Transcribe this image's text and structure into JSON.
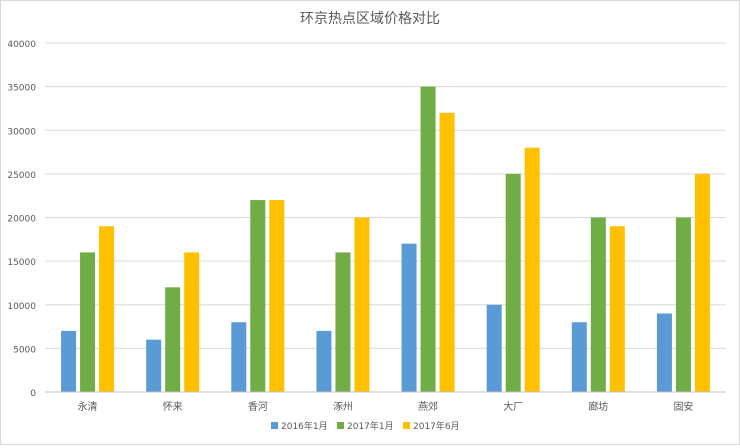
{
  "chart_data": {
    "type": "bar",
    "title": "环京热点区域价格对比",
    "xlabel": "",
    "ylabel": "",
    "categories": [
      "永清",
      "怀来",
      "香河",
      "涿州",
      "燕郊",
      "大厂",
      "廊坊",
      "固安"
    ],
    "series": [
      {
        "name": "2016年1月",
        "color": "#5b9bd5",
        "values": [
          7000,
          6000,
          8000,
          7000,
          17000,
          10000,
          8000,
          9000
        ]
      },
      {
        "name": "2017年1月",
        "color": "#70ad47",
        "values": [
          16000,
          12000,
          22000,
          16000,
          35000,
          25000,
          20000,
          20000
        ]
      },
      {
        "name": "2017年6月",
        "color": "#ffc000",
        "values": [
          19000,
          16000,
          22000,
          20000,
          32000,
          28000,
          19000,
          25000
        ]
      }
    ],
    "ylim": [
      0,
      40000
    ],
    "yticks": [
      "0",
      "5000",
      "10000",
      "15000",
      "20000",
      "25000",
      "30000",
      "35000",
      "40000"
    ],
    "grid": true,
    "legend_position": "bottom"
  }
}
